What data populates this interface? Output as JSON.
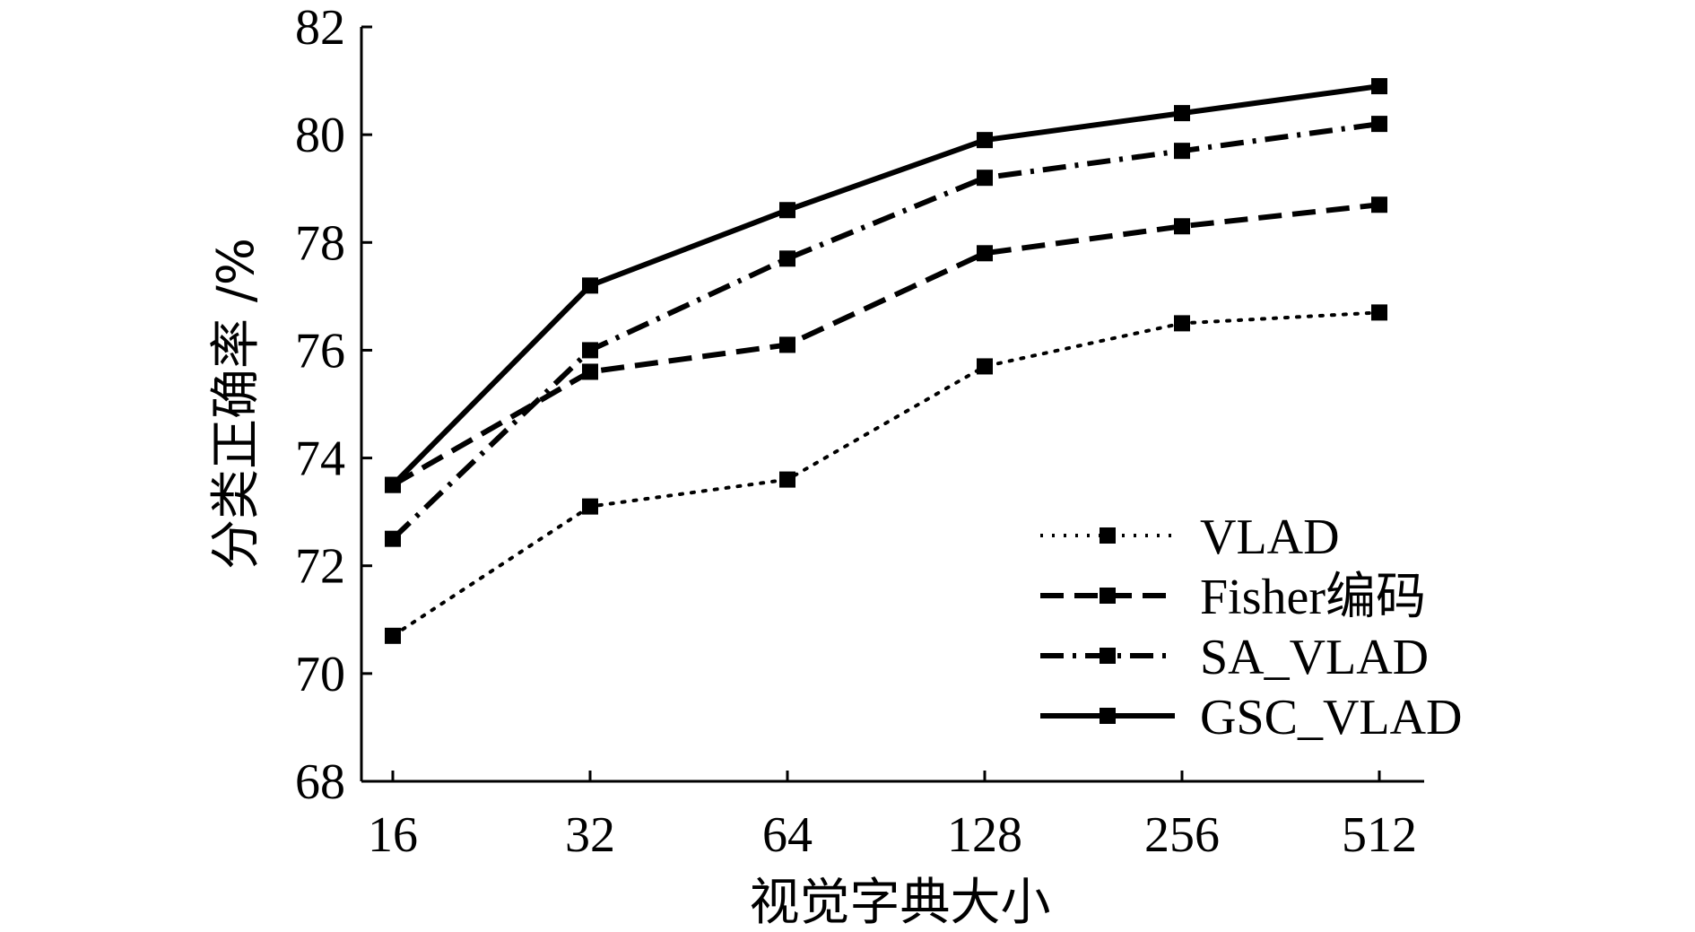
{
  "chart_data": {
    "type": "line",
    "title": "",
    "xlabel": "视觉字典大小",
    "ylabel": "分类正确率 /%",
    "categories": [
      "16",
      "32",
      "64",
      "128",
      "256",
      "512"
    ],
    "ylim": [
      68,
      82
    ],
    "yticks": [
      68,
      70,
      72,
      74,
      76,
      78,
      80,
      82
    ],
    "grid": false,
    "legend_position": "bottom-right",
    "series": [
      {
        "name": "VLAD",
        "style": "dotted",
        "color": "#000000",
        "values": [
          70.7,
          73.1,
          73.6,
          75.7,
          76.5,
          76.7
        ]
      },
      {
        "name": "Fisher编码",
        "style": "dashed",
        "color": "#000000",
        "values": [
          73.5,
          75.6,
          76.1,
          77.8,
          78.3,
          78.7
        ]
      },
      {
        "name": "SA_VLAD",
        "style": "dash-dot",
        "color": "#000000",
        "values": [
          72.5,
          76.0,
          77.7,
          79.2,
          79.7,
          80.2
        ]
      },
      {
        "name": "GSC_VLAD",
        "style": "solid",
        "color": "#000000",
        "values": [
          73.5,
          77.2,
          78.6,
          79.9,
          80.4,
          80.9
        ]
      }
    ]
  }
}
